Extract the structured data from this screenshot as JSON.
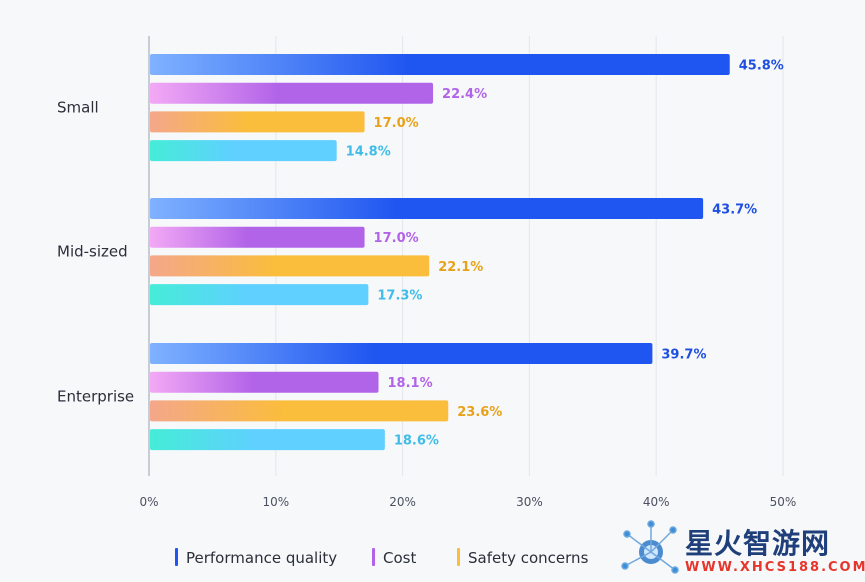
{
  "chart_data": {
    "type": "bar",
    "orientation": "horizontal",
    "categories": [
      "Small",
      "Mid-sized",
      "Enterprise"
    ],
    "series": [
      {
        "name": "Performance quality",
        "values": [
          45.8,
          43.7,
          39.7
        ],
        "color": "#1f55f0",
        "color_light": "#7fb2ff"
      },
      {
        "name": "Cost",
        "values": [
          22.4,
          17.0,
          18.1
        ],
        "color": "#b264e8",
        "color_light": "#f3a9f5"
      },
      {
        "name": "Safety concerns",
        "values": [
          17.0,
          22.1,
          23.6
        ],
        "color": "#fbbd3c",
        "color_light": "#f4a78a"
      },
      {
        "name": "",
        "values": [
          14.8,
          17.3,
          18.6
        ],
        "color": "#5fd0ff",
        "color_light": "#45ecd8"
      }
    ],
    "value_labels": [
      [
        "45.8%",
        "43.7%",
        "39.7%"
      ],
      [
        "22.4%",
        "17.0%",
        "18.1%"
      ],
      [
        "17.0%",
        "22.1%",
        "23.6%"
      ],
      [
        "14.8%",
        "17.3%",
        "18.6%"
      ]
    ],
    "label_colors": [
      "#1f4fe0",
      "#b264e8",
      "#e8a21a",
      "#3fbde8"
    ],
    "xlim": [
      0,
      50
    ],
    "x_ticks": [
      0,
      10,
      20,
      30,
      40,
      50
    ],
    "x_tick_labels": [
      "0%",
      "10%",
      "20%",
      "30%",
      "40%",
      "50%"
    ],
    "title": "",
    "xlabel": "",
    "ylabel": "",
    "grid": true,
    "legend_position": "bottom",
    "legend_items": [
      "Performance quality",
      "Cost",
      "Safety concerns"
    ]
  },
  "watermark": {
    "text_cn": "星火智游网",
    "url": "WWW.XHCS188.COM"
  }
}
